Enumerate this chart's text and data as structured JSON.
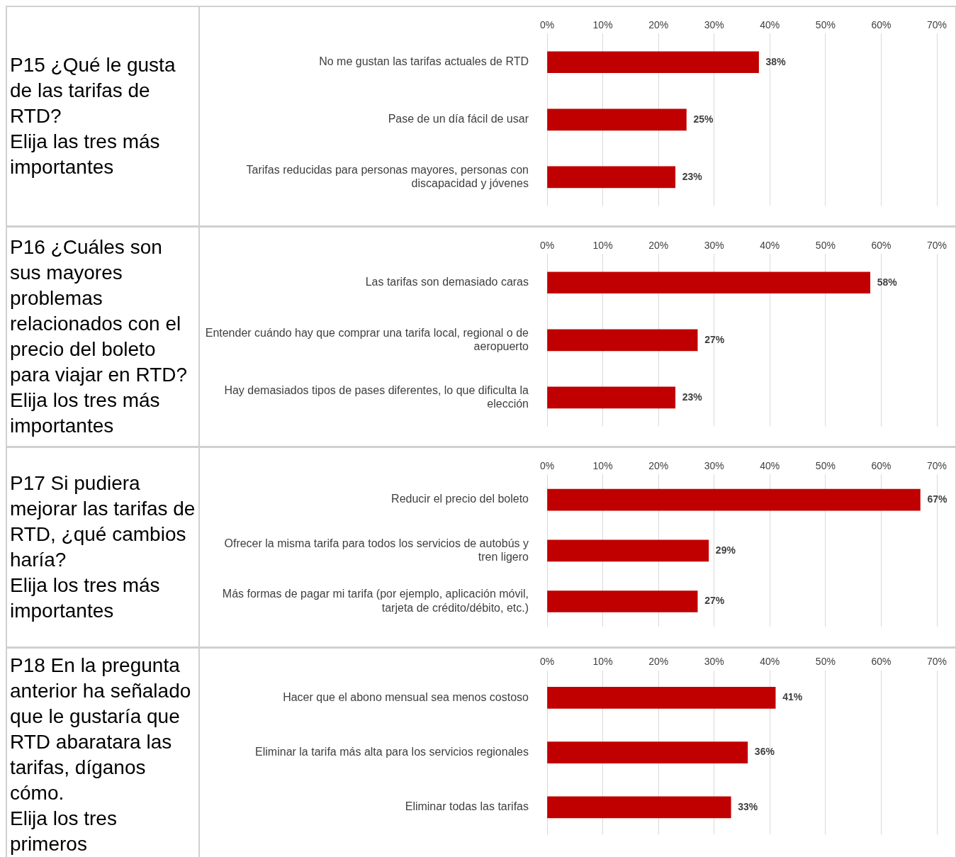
{
  "chart_data": [
    {
      "type": "bar",
      "orientation": "horizontal",
      "title": "P15 ¿Qué le gusta de las tarifas de RTD?\nElija las tres más importantes",
      "categories": [
        "No me gustan las tarifas actuales de RTD",
        "Pase de un día fácil de usar",
        "Tarifas reducidas para personas mayores, personas con discapacidad y jóvenes"
      ],
      "values": [
        38,
        25,
        23
      ],
      "value_labels": [
        "38%",
        "25%",
        "23%"
      ],
      "color": "#c00000",
      "xlim": [
        0,
        70
      ],
      "xticks": [
        {
          "value": 0,
          "label": "0%"
        },
        {
          "value": 10,
          "label": "10%"
        },
        {
          "value": 20,
          "label": "20%"
        },
        {
          "value": 30,
          "label": "30%"
        },
        {
          "value": 40,
          "label": "40%"
        },
        {
          "value": 50,
          "label": "50%"
        },
        {
          "value": 60,
          "label": "60%"
        },
        {
          "value": 70,
          "label": "70%"
        }
      ],
      "grid": "x"
    },
    {
      "type": "bar",
      "orientation": "horizontal",
      "title": "P16 ¿Cuáles son sus mayores problemas relacionados con el precio del boleto para viajar en RTD?\nElija los tres más importantes",
      "categories": [
        "Las tarifas son demasiado caras",
        "Entender cuándo hay que comprar una tarifa local, regional o de aeropuerto",
        "Hay demasiados tipos de pases diferentes, lo que dificulta la elección"
      ],
      "values": [
        58,
        27,
        23
      ],
      "value_labels": [
        "58%",
        "27%",
        "23%"
      ],
      "color": "#c00000",
      "xlim": [
        0,
        70
      ],
      "xticks": [
        {
          "value": 0,
          "label": "0%"
        },
        {
          "value": 10,
          "label": "10%"
        },
        {
          "value": 20,
          "label": "20%"
        },
        {
          "value": 30,
          "label": "30%"
        },
        {
          "value": 40,
          "label": "40%"
        },
        {
          "value": 50,
          "label": "50%"
        },
        {
          "value": 60,
          "label": "60%"
        },
        {
          "value": 70,
          "label": "70%"
        }
      ],
      "grid": "x"
    },
    {
      "type": "bar",
      "orientation": "horizontal",
      "title": "P17 Si pudiera mejorar las tarifas de RTD, ¿qué cambios haría?\nElija los tres más importantes",
      "categories": [
        "Reducir el precio del boleto",
        "Ofrecer la misma tarifa para todos los servicios de autobús y tren ligero",
        "Más formas de pagar mi tarifa (por ejemplo, aplicación móvil, tarjeta de crédito/débito, etc.)"
      ],
      "values": [
        67,
        29,
        27
      ],
      "value_labels": [
        "67%",
        "29%",
        "27%"
      ],
      "color": "#c00000",
      "xlim": [
        0,
        70
      ],
      "xticks": [
        {
          "value": 0,
          "label": "0%"
        },
        {
          "value": 10,
          "label": "10%"
        },
        {
          "value": 20,
          "label": "20%"
        },
        {
          "value": 30,
          "label": "30%"
        },
        {
          "value": 40,
          "label": "40%"
        },
        {
          "value": 50,
          "label": "50%"
        },
        {
          "value": 60,
          "label": "60%"
        },
        {
          "value": 70,
          "label": "70%"
        }
      ],
      "grid": "x"
    },
    {
      "type": "bar",
      "orientation": "horizontal",
      "title": "P18 En la pregunta anterior ha señalado que le gustaría que RTD abaratara las tarifas, díganos cómo.\nElija los tres primeros",
      "categories": [
        "Hacer que el abono mensual sea menos costoso",
        "Eliminar la tarifa más alta para los servicios regionales",
        "Eliminar todas las tarifas"
      ],
      "values": [
        41,
        36,
        33
      ],
      "value_labels": [
        "41%",
        "36%",
        "33%"
      ],
      "color": "#c00000",
      "xlim": [
        0,
        70
      ],
      "xticks": [
        {
          "value": 0,
          "label": "0%"
        },
        {
          "value": 10,
          "label": "10%"
        },
        {
          "value": 20,
          "label": "20%"
        },
        {
          "value": 30,
          "label": "30%"
        },
        {
          "value": 40,
          "label": "40%"
        },
        {
          "value": 50,
          "label": "50%"
        },
        {
          "value": 60,
          "label": "60%"
        },
        {
          "value": 70,
          "label": "70%"
        }
      ],
      "grid": "x"
    }
  ]
}
